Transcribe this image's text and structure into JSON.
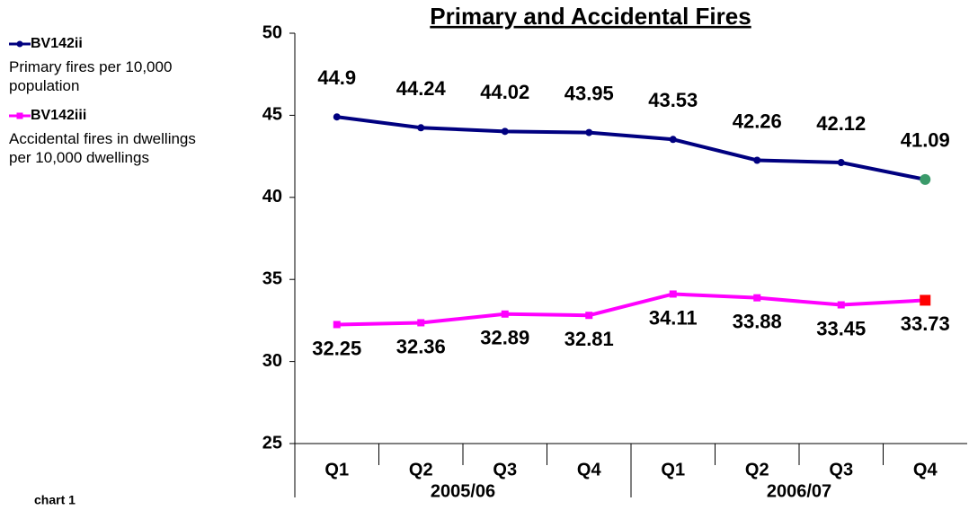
{
  "chart_data": {
    "type": "line",
    "title": "Primary and Accidental Fires",
    "categories": [
      "Q1",
      "Q2",
      "Q3",
      "Q4",
      "Q1",
      "Q2",
      "Q3",
      "Q4"
    ],
    "groups": [
      "2005/06",
      "2006/07"
    ],
    "series": [
      {
        "name": "BV142ii",
        "description": "Primary fires per 10,000 population",
        "color": "#000080",
        "last_marker_color": "#3a9a6a",
        "marker": "circle",
        "values": [
          44.9,
          44.24,
          44.02,
          43.95,
          43.53,
          42.26,
          42.12,
          41.09
        ]
      },
      {
        "name": "BV142iii",
        "description": "Accidental fires in dwellings per 10,000 dwellings",
        "color": "#ff00ff",
        "last_marker_color": "#ff0000",
        "marker": "square",
        "values": [
          32.25,
          32.36,
          32.89,
          32.81,
          34.11,
          33.88,
          33.45,
          33.73
        ]
      }
    ],
    "ylim": [
      25,
      50
    ],
    "yticks": [
      25,
      30,
      35,
      40,
      45,
      50
    ],
    "note": "chart 1"
  }
}
